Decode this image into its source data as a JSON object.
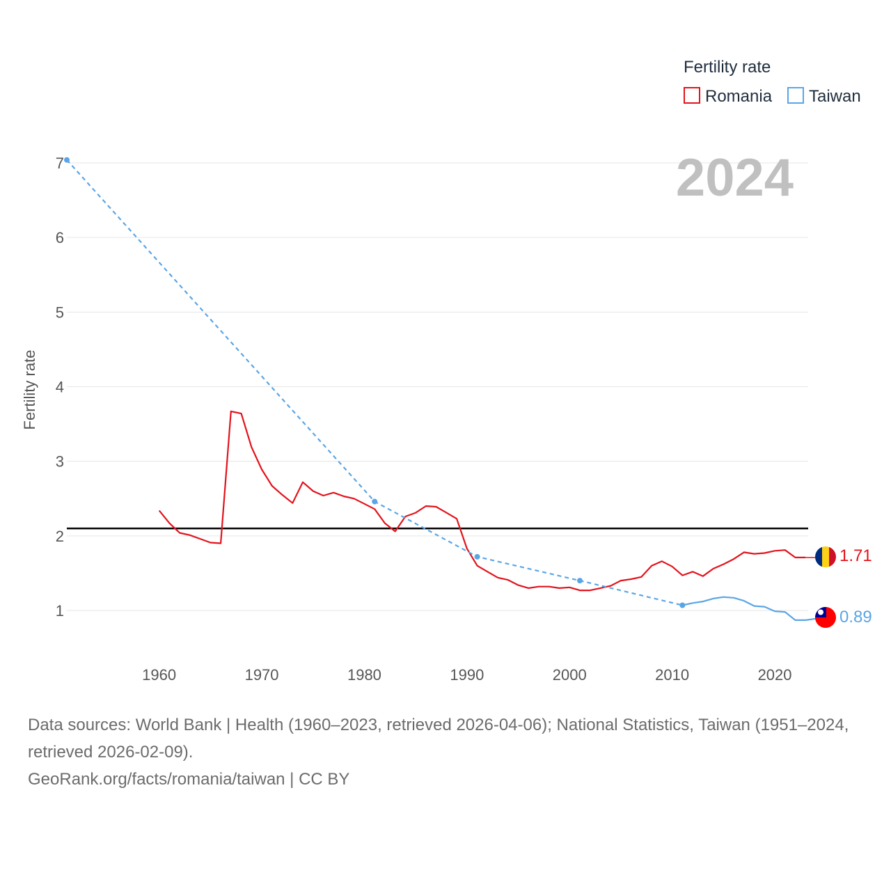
{
  "legend": {
    "title": "Fertility rate",
    "items": [
      {
        "label": "Romania",
        "color": "#e3121b"
      },
      {
        "label": "Taiwan",
        "color": "#5aa5e6"
      }
    ]
  },
  "year_label": "2024",
  "footer": {
    "sources": "Data sources: World Bank | Health (1960–2023, retrieved 2026-04-06); National Statistics, Taiwan (1951–2024, retrieved 2026-02-09).",
    "credit": "GeoRank.org/facts/romania/taiwan | CC BY"
  },
  "chart_data": {
    "type": "line",
    "title": "",
    "xlabel": "",
    "ylabel": "Fertility rate",
    "xlim": [
      1950.5,
      2024
    ],
    "ylim": [
      0.5,
      7.3
    ],
    "xticks": [
      1960,
      1970,
      1980,
      1990,
      2000,
      2010,
      2020
    ],
    "yticks": [
      1,
      2,
      3,
      4,
      5,
      6,
      7
    ],
    "reference_line": 2.1,
    "series": [
      {
        "name": "Romania",
        "color": "#e3121b",
        "end_label": "1.71",
        "points": [
          [
            1960,
            2.34
          ],
          [
            1961,
            2.17
          ],
          [
            1962,
            2.04
          ],
          [
            1963,
            2.01
          ],
          [
            1964,
            1.96
          ],
          [
            1965,
            1.91
          ],
          [
            1966,
            1.9
          ],
          [
            1967,
            3.67
          ],
          [
            1968,
            3.64
          ],
          [
            1969,
            3.19
          ],
          [
            1970,
            2.89
          ],
          [
            1971,
            2.67
          ],
          [
            1972,
            2.55
          ],
          [
            1973,
            2.44
          ],
          [
            1974,
            2.72
          ],
          [
            1975,
            2.6
          ],
          [
            1976,
            2.54
          ],
          [
            1977,
            2.58
          ],
          [
            1978,
            2.53
          ],
          [
            1979,
            2.5
          ],
          [
            1980,
            2.43
          ],
          [
            1981,
            2.36
          ],
          [
            1982,
            2.17
          ],
          [
            1983,
            2.06
          ],
          [
            1984,
            2.26
          ],
          [
            1985,
            2.31
          ],
          [
            1986,
            2.4
          ],
          [
            1987,
            2.39
          ],
          [
            1988,
            2.31
          ],
          [
            1989,
            2.23
          ],
          [
            1990,
            1.83
          ],
          [
            1991,
            1.6
          ],
          [
            1992,
            1.52
          ],
          [
            1993,
            1.44
          ],
          [
            1994,
            1.41
          ],
          [
            1995,
            1.34
          ],
          [
            1996,
            1.3
          ],
          [
            1997,
            1.32
          ],
          [
            1998,
            1.32
          ],
          [
            1999,
            1.3
          ],
          [
            2000,
            1.31
          ],
          [
            2001,
            1.27
          ],
          [
            2002,
            1.27
          ],
          [
            2003,
            1.3
          ],
          [
            2004,
            1.33
          ],
          [
            2005,
            1.4
          ],
          [
            2006,
            1.42
          ],
          [
            2007,
            1.45
          ],
          [
            2008,
            1.6
          ],
          [
            2009,
            1.66
          ],
          [
            2010,
            1.59
          ],
          [
            2011,
            1.47
          ],
          [
            2012,
            1.52
          ],
          [
            2013,
            1.46
          ],
          [
            2014,
            1.56
          ],
          [
            2015,
            1.62
          ],
          [
            2016,
            1.69
          ],
          [
            2017,
            1.78
          ],
          [
            2018,
            1.76
          ],
          [
            2019,
            1.77
          ],
          [
            2020,
            1.8
          ],
          [
            2021,
            1.81
          ],
          [
            2022,
            1.71
          ],
          [
            2023,
            1.71
          ]
        ],
        "carry_forward_to": 2024
      },
      {
        "name": "Taiwan",
        "color": "#5aa5e6",
        "end_label": "0.89",
        "dashed_segment_end": 2011,
        "markers": [
          1951,
          1981,
          1991,
          2001,
          2011
        ],
        "points": [
          [
            1951,
            7.04
          ],
          [
            1981,
            2.46
          ],
          [
            1991,
            1.72
          ],
          [
            2001,
            1.4
          ],
          [
            2011,
            1.07
          ],
          [
            2012,
            1.1
          ],
          [
            2013,
            1.12
          ],
          [
            2014,
            1.16
          ],
          [
            2015,
            1.18
          ],
          [
            2016,
            1.17
          ],
          [
            2017,
            1.13
          ],
          [
            2018,
            1.06
          ],
          [
            2019,
            1.05
          ],
          [
            2020,
            0.99
          ],
          [
            2021,
            0.98
          ],
          [
            2022,
            0.87
          ],
          [
            2023,
            0.87
          ],
          [
            2024,
            0.89
          ]
        ]
      }
    ]
  }
}
